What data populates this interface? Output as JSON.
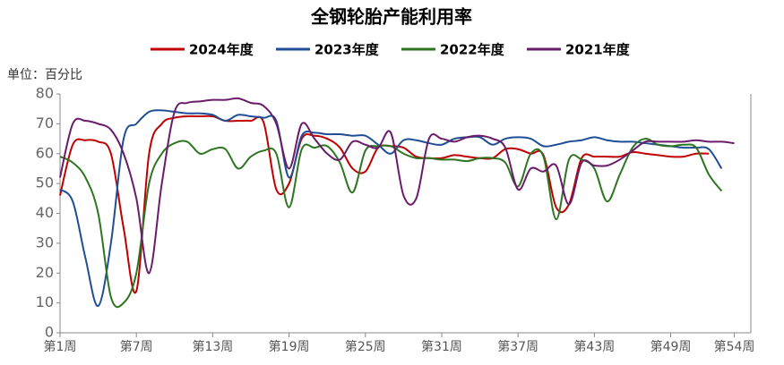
{
  "chart_data": {
    "type": "line",
    "title": "全钢轮胎产能利用率",
    "y_label": "单位：百分比",
    "x": [
      1,
      2,
      3,
      4,
      5,
      6,
      7,
      8,
      9,
      10,
      11,
      12,
      13,
      14,
      15,
      16,
      17,
      18,
      19,
      20,
      21,
      22,
      23,
      24,
      25,
      26,
      27,
      28,
      29,
      30,
      31,
      32,
      33,
      34,
      35,
      36,
      37,
      38,
      39,
      40,
      41,
      42,
      43,
      44,
      45,
      46,
      47,
      48,
      49,
      50,
      51,
      52,
      53,
      54
    ],
    "xlim": [
      1,
      55.3
    ],
    "xticks": [
      {
        "value": 1,
        "label": "第1周"
      },
      {
        "value": 7,
        "label": "第7周"
      },
      {
        "value": 13,
        "label": "第13周"
      },
      {
        "value": 19,
        "label": "第19周"
      },
      {
        "value": 25,
        "label": "第25周"
      },
      {
        "value": 31,
        "label": "第31周"
      },
      {
        "value": 37,
        "label": "第37周"
      },
      {
        "value": 43,
        "label": "第43周"
      },
      {
        "value": 49,
        "label": "第49周"
      },
      {
        "value": 54,
        "label": "第54周"
      }
    ],
    "ylim": [
      0,
      80
    ],
    "yticks": [
      0,
      10,
      20,
      30,
      40,
      50,
      60,
      70,
      80
    ],
    "grid": false,
    "series": [
      {
        "name": "2024年度",
        "color": "#c00000",
        "values": [
          46,
          63,
          64.5,
          64,
          60,
          35,
          14,
          60,
          70,
          72,
          72.5,
          72.5,
          72.5,
          71,
          71,
          71,
          70.5,
          48,
          50,
          65,
          66,
          65,
          62,
          55,
          54,
          62,
          62.5,
          62,
          59,
          58.5,
          58.5,
          59.5,
          59,
          58.5,
          58.5,
          61.5,
          61.5,
          60,
          59.5,
          42,
          43,
          58.5,
          59,
          59,
          59,
          60.5,
          60,
          59.5,
          59,
          59,
          60,
          60,
          null,
          null
        ]
      },
      {
        "name": "2023年度",
        "color": "#1f4e96",
        "values": [
          48,
          44,
          25,
          9,
          30,
          65,
          70,
          74,
          74.5,
          74,
          73.5,
          73.5,
          73,
          71,
          73,
          72.5,
          72,
          71,
          52,
          66,
          67,
          66.5,
          66.5,
          66,
          66,
          63,
          60,
          64.5,
          64.5,
          63.5,
          63,
          65,
          65.5,
          65.5,
          63,
          65,
          65.5,
          65,
          62.5,
          63,
          64,
          64.5,
          65.5,
          64.5,
          64,
          64,
          63.5,
          63,
          62.5,
          62,
          62,
          61.5,
          55,
          null
        ]
      },
      {
        "name": "2022年度",
        "color": "#2e7522",
        "values": [
          59,
          57,
          52,
          40,
          12,
          10,
          20,
          50,
          60,
          63.5,
          64,
          60,
          61.5,
          61.5,
          55,
          59,
          61,
          60,
          42,
          61.5,
          62,
          62.5,
          57,
          47,
          61,
          62.5,
          62.5,
          60,
          58.5,
          58.5,
          58,
          58,
          57.5,
          58.5,
          58.5,
          57,
          49,
          60,
          59,
          38,
          58,
          58,
          55,
          44,
          53,
          62,
          65,
          63,
          62.5,
          63,
          62,
          53,
          47.5,
          null
        ]
      },
      {
        "name": "2021年度",
        "color": "#6a1b6a",
        "values": [
          52,
          70,
          71,
          70,
          68,
          60,
          45,
          20,
          50,
          74,
          77,
          77.5,
          78,
          78,
          78.5,
          77,
          76,
          70,
          55,
          70,
          65,
          60,
          58,
          64,
          63,
          62,
          67,
          46,
          45,
          65,
          65,
          64,
          65.5,
          66,
          65,
          62,
          48,
          55,
          54,
          56,
          43,
          57,
          56,
          56,
          58,
          61,
          64,
          64,
          64,
          64,
          64.5,
          64,
          64,
          63.5
        ]
      }
    ]
  }
}
